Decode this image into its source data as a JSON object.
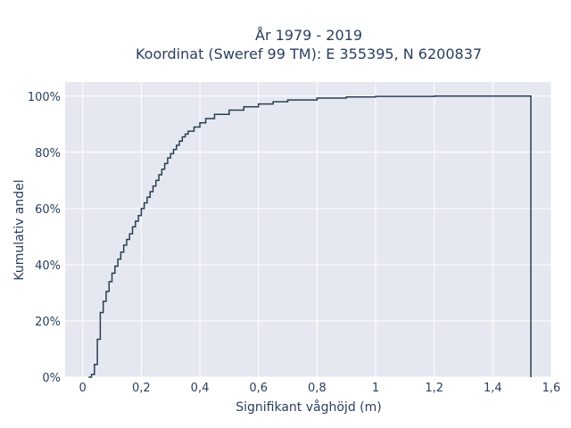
{
  "chart_data": {
    "type": "line",
    "line_shape": "step",
    "title_lines": [
      "År 1979 - 2019",
      "Koordinat (Sweref 99 TM): E 355395, N 6200837"
    ],
    "xlabel": "Signifikant våghöjd (m)",
    "ylabel": "Kumulativ andel",
    "xlim": [
      -0.06,
      1.6
    ],
    "ylim": [
      0,
      1.05
    ],
    "x_ticks": [
      0,
      0.2,
      0.4,
      0.6,
      0.8,
      1.0,
      1.2,
      1.4,
      1.6
    ],
    "x_tick_labels": [
      "0",
      "0,2",
      "0,4",
      "0,6",
      "0,8",
      "1",
      "1,2",
      "1,4",
      "1,6"
    ],
    "y_ticks": [
      0,
      0.2,
      0.4,
      0.6,
      0.8,
      1.0
    ],
    "y_tick_labels": [
      "0%",
      "20%",
      "40%",
      "60%",
      "80%",
      "100%"
    ],
    "grid": true,
    "line_color": "#2c3e50",
    "plot_background": "#e5e8f1",
    "series": [
      {
        "x": [
          0.02,
          0.03,
          0.04,
          0.05,
          0.06,
          0.07,
          0.08,
          0.09,
          0.1,
          0.11,
          0.12,
          0.13,
          0.14,
          0.15,
          0.16,
          0.17,
          0.18,
          0.19,
          0.2,
          0.21,
          0.22,
          0.23,
          0.24,
          0.25,
          0.26,
          0.27,
          0.28,
          0.29,
          0.3,
          0.31,
          0.32,
          0.33,
          0.34,
          0.35,
          0.36,
          0.38,
          0.4,
          0.42,
          0.45,
          0.5,
          0.55,
          0.6,
          0.65,
          0.7,
          0.8,
          0.9,
          1.0,
          1.2,
          1.53,
          1.53
        ],
        "y": [
          0.0,
          0.01,
          0.045,
          0.135,
          0.23,
          0.27,
          0.305,
          0.34,
          0.37,
          0.395,
          0.42,
          0.445,
          0.47,
          0.49,
          0.51,
          0.535,
          0.555,
          0.575,
          0.6,
          0.62,
          0.64,
          0.66,
          0.68,
          0.7,
          0.72,
          0.74,
          0.76,
          0.78,
          0.795,
          0.81,
          0.825,
          0.84,
          0.855,
          0.865,
          0.875,
          0.89,
          0.905,
          0.92,
          0.935,
          0.95,
          0.962,
          0.972,
          0.98,
          0.986,
          0.993,
          0.997,
          0.999,
          1.0,
          1.0,
          0.0
        ]
      }
    ]
  }
}
